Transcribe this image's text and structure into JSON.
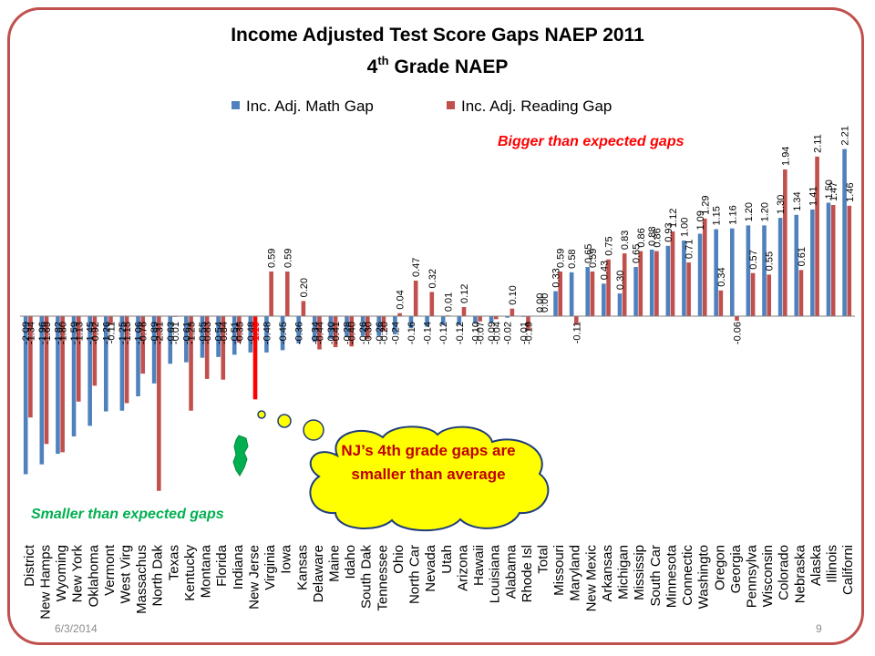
{
  "slide": {
    "date": "6/3/2014",
    "page_number": "9",
    "border_color": "#c0504d"
  },
  "chart_data": {
    "type": "bar",
    "title": "Income Adjusted Test Score Gaps NAEP 2011",
    "subtitle_main": "4",
    "subtitle_sup": "th",
    "subtitle_rest": " Grade NAEP",
    "legend_position": "top",
    "grid": false,
    "categories": [
      "District",
      "New Hamps",
      "Wyoming",
      "New York",
      "Oklahoma",
      "Vermont",
      "West Virg",
      "Massachus",
      "North Dak",
      "Texas",
      "Kentucky",
      "Montana",
      "Florida",
      "Indiana",
      "New Jerse",
      "Virginia",
      "Iowa",
      "Kansas",
      "Delaware",
      "Maine",
      "Idaho",
      "South Dak",
      "Tennessee",
      "Ohio",
      "North Car",
      "Nevada",
      "Utah",
      "Arizona",
      "Hawaii",
      "Louisiana",
      "Alabama",
      "Rhode Isl",
      "Total",
      "Missouri",
      "Maryland",
      "New Mexic",
      "Arkansas",
      "Michigan",
      "Mississip",
      "South Car",
      "Minnesota",
      "Connectic",
      "Washingto",
      "Oregon",
      "Georgia",
      "Pennsylva",
      "Wisconsin",
      "Colorado",
      "Nebraska",
      "Alaska",
      "Illinois",
      "Californi"
    ],
    "series": [
      {
        "name": "Inc. Adj. Math Gap",
        "color": "#4f81bd",
        "values": [
          -2.09,
          -1.96,
          -1.82,
          -1.59,
          -1.45,
          -1.26,
          -1.25,
          -1.06,
          -0.89,
          -0.63,
          -0.61,
          -0.55,
          -0.54,
          -0.51,
          -0.48,
          -0.48,
          -0.45,
          -0.36,
          -0.34,
          -0.3,
          -0.28,
          -0.26,
          -0.26,
          -0.24,
          -0.16,
          -0.14,
          -0.12,
          -0.12,
          -0.1,
          -0.09,
          -0.02,
          -0.01,
          0.0,
          0.33,
          0.58,
          0.65,
          0.43,
          0.3,
          0.65,
          0.88,
          0.93,
          1.0,
          1.09,
          1.15,
          1.16,
          1.2,
          1.2,
          1.3,
          1.34,
          1.41,
          1.5,
          2.21
        ]
      },
      {
        "name": "Inc. Adj. Reading Gap",
        "color": "#c0504d",
        "values": [
          -1.34,
          -1.69,
          -1.8,
          -1.13,
          -0.92,
          -0.11,
          -1.15,
          -0.76,
          -2.31,
          -0.01,
          -1.25,
          -0.83,
          -0.84,
          -0.35,
          -1.1,
          0.59,
          0.59,
          0.2,
          -0.44,
          -0.41,
          -0.4,
          -0.3,
          -0.2,
          0.04,
          0.47,
          0.32,
          0.01,
          0.12,
          -0.07,
          -0.04,
          0.1,
          -0.19,
          0.0,
          0.59,
          -0.11,
          0.59,
          0.75,
          0.83,
          0.86,
          0.86,
          1.12,
          0.71,
          1.29,
          0.34,
          -0.06,
          0.57,
          0.55,
          1.94,
          0.61,
          2.11,
          1.47,
          1.46
        ]
      }
    ],
    "ylim": [
      -2.5,
      2.5
    ],
    "highlight_category": "New Jerse",
    "highlight_color": "#ff0000",
    "annotations": {
      "smaller": "Smaller than expected gaps",
      "bigger": "Bigger than expected gaps",
      "callout": "NJ’s 4th grade gaps are smaller than average"
    }
  }
}
